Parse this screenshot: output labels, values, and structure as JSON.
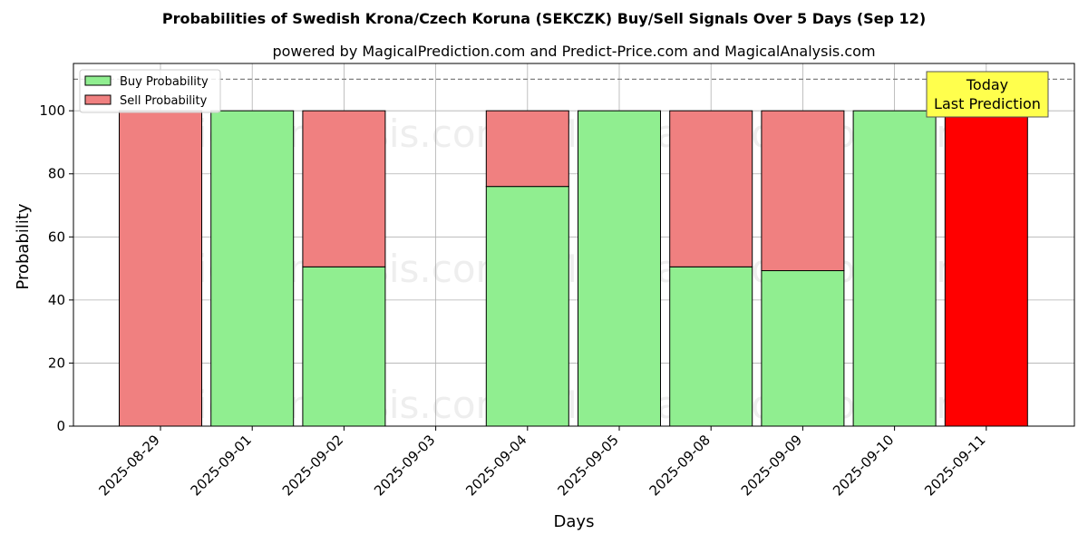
{
  "chart_data": {
    "type": "bar",
    "stacked": true,
    "title": "Probabilities of Swedish Krona/Czech Koruna (SEKCZK) Buy/Sell Signals Over 5 Days (Sep 12)",
    "subtitle": "powered by MagicalPrediction.com and Predict-Price.com and MagicalAnalysis.com",
    "xlabel": "Days",
    "ylabel": "Probability",
    "ylim": [
      0,
      115
    ],
    "yticks": [
      0,
      20,
      40,
      60,
      80,
      100
    ],
    "reference_line": 110,
    "grid": true,
    "legend_position": "top-left",
    "categories": [
      "2025-08-29",
      "2025-09-01",
      "2025-09-02",
      "2025-09-03",
      "2025-09-04",
      "2025-09-05",
      "2025-09-08",
      "2025-09-09",
      "2025-09-10",
      "2025-09-11"
    ],
    "series": [
      {
        "name": "Buy Probability",
        "color": "#90ee90",
        "values": [
          0,
          100,
          50.5,
          null,
          76,
          100,
          50.5,
          49.3,
          100,
          0
        ]
      },
      {
        "name": "Sell Probability",
        "color": "#f08080",
        "values": [
          100,
          0,
          49.5,
          null,
          24,
          0,
          49.5,
          50.7,
          0,
          100
        ]
      }
    ],
    "highlight": {
      "category": "2025-09-11",
      "color": "#ff0000"
    },
    "annotation": {
      "line1": "Today",
      "line2": "Last Prediction",
      "box_color": "#ffff4d"
    },
    "watermarks": [
      "MagicalAnalysis.com",
      "MagicalPrediction.com"
    ]
  }
}
